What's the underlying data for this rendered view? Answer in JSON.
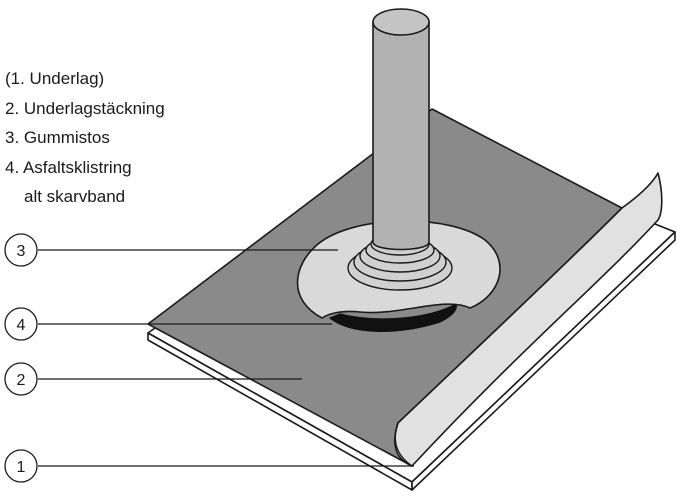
{
  "legend": {
    "lines": [
      "(1. Underlag)",
      "2. Underlagstäckning",
      "3. Gummistos",
      "4. Asfaltsklistring",
      "alt skarvband"
    ]
  },
  "callouts": [
    {
      "number": "3"
    },
    {
      "number": "4"
    },
    {
      "number": "2"
    },
    {
      "number": "1"
    }
  ],
  "colors": {
    "membrane": "#8a8a8a",
    "pipe": "#b2b2b2",
    "boot": "#d9d9d9",
    "board": "#ffffff",
    "outline": "#1a1a1a",
    "adhesive": "#111111"
  }
}
